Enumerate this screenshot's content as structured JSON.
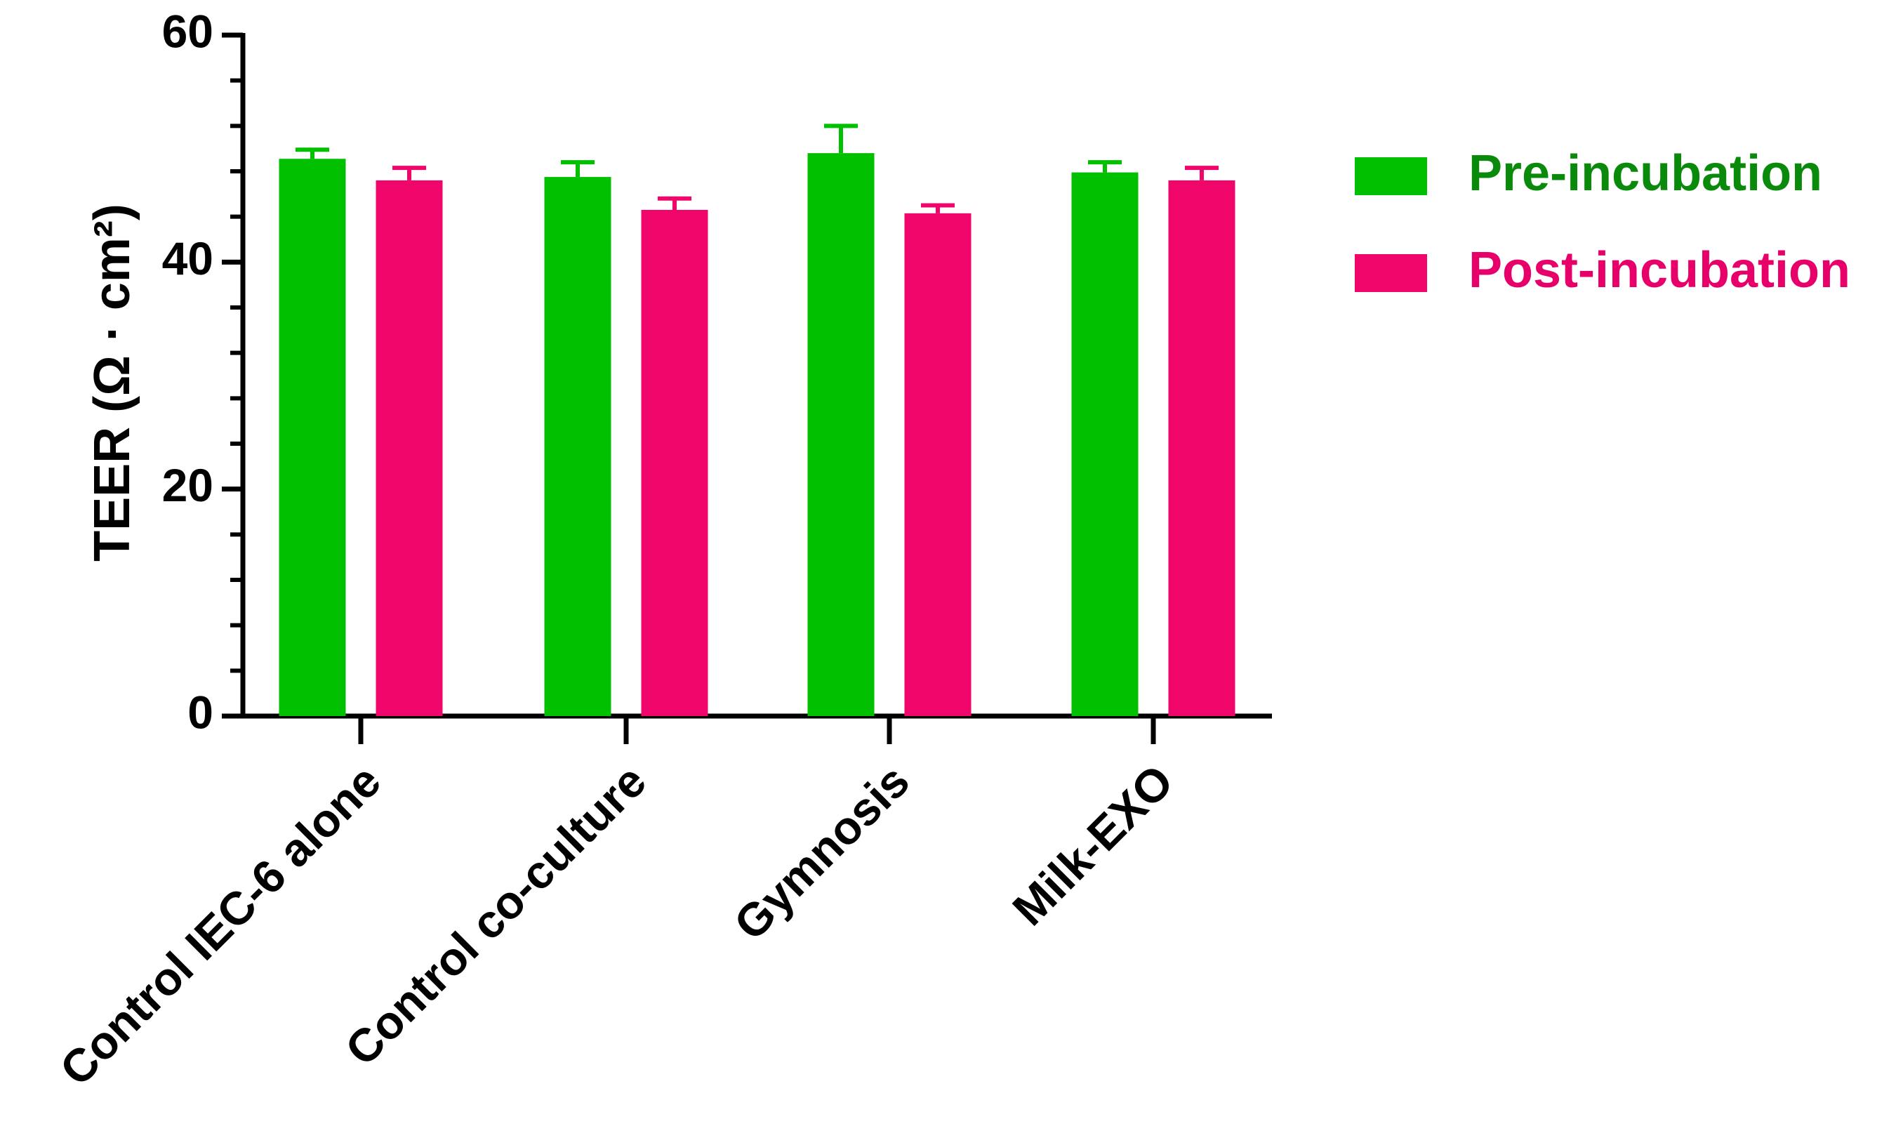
{
  "chart_data": {
    "type": "bar",
    "y_label": "TEER (Ω · cm²)",
    "categories": [
      "Control IEC-6 alone",
      "Control co-culture",
      "Gymnosis",
      "Milk-EXO"
    ],
    "series": [
      {
        "name": "Pre-incubation",
        "color": "#00c000",
        "label_color": "#0a8a0a",
        "values": [
          49.1,
          47.5,
          49.6,
          47.9
        ],
        "errors": [
          0.8,
          1.3,
          2.4,
          0.9
        ]
      },
      {
        "name": "Post-incubation",
        "color": "#f0056a",
        "label_color": "#e8006a",
        "values": [
          47.2,
          44.6,
          44.3,
          47.2
        ],
        "errors": [
          1.1,
          1.0,
          0.7,
          1.1
        ]
      }
    ],
    "ylim": [
      0,
      60
    ],
    "yticks": [
      0,
      20,
      40,
      60
    ],
    "minor_yticks": [
      4,
      8,
      12,
      16,
      24,
      28,
      32,
      36,
      44,
      48,
      52,
      56
    ],
    "legend": "right"
  }
}
